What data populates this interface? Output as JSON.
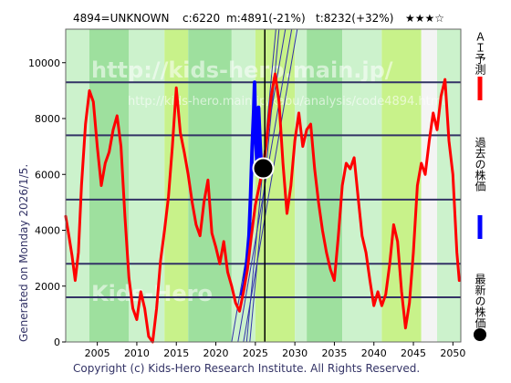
{
  "header": {
    "code_name": "4894=UNKNOWN",
    "current": "c:6220",
    "min_stat": "m:4891(-21%)",
    "target_stat": "t:8232(+32%)",
    "rating": "★★★☆"
  },
  "side_label": "Generated on Monday 2026/1/5.",
  "copyright": "Copyright (c) Kids-Hero Research Institute. All Rights Reserved.",
  "watermark": {
    "main": "http://kids-hero.main.jp/",
    "sub": "http://kids-hero.main.jp/kabu/analysis/code4894.html",
    "bottom": "Kids-Hero"
  },
  "legend": [
    {
      "label": "ＡＩ予測",
      "color": "#ff0000",
      "shape": "line"
    },
    {
      "label": "過去の株価",
      "color": "#0000ff",
      "shape": "line"
    },
    {
      "label": "最新の株価",
      "color": "#000000",
      "shape": "dot"
    }
  ],
  "colors": {
    "band_light": "#ccf2cc",
    "band_green": "#9ee09e",
    "band_yellow": "#c8f28a",
    "band_white": "#f4f4f4",
    "forecast": "#ff0000",
    "history": "#0000ff",
    "hline": "#333366",
    "diag": "#3333aa"
  },
  "chart_data": {
    "type": "line",
    "title": "",
    "xlabel": "",
    "ylabel": "",
    "xlim": [
      2001,
      2051
    ],
    "ylim": [
      0,
      11200
    ],
    "x_ticks": [
      2005,
      2010,
      2015,
      2020,
      2025,
      2030,
      2035,
      2040,
      2045,
      2050
    ],
    "y_ticks": [
      0,
      2000,
      4000,
      6000,
      8000,
      10000
    ],
    "grid": false,
    "legend_position": "right",
    "horizontal_levels": [
      9300,
      7400,
      5100,
      2800,
      1600
    ],
    "latest_price": {
      "x": 2026.0,
      "y": 6220
    },
    "vertical_marker_x": 2026.2,
    "bands": [
      {
        "from": 2001.0,
        "to": 2004.0,
        "kind": "light"
      },
      {
        "from": 2004.0,
        "to": 2009.0,
        "kind": "green"
      },
      {
        "from": 2009.0,
        "to": 2013.5,
        "kind": "light"
      },
      {
        "from": 2013.5,
        "to": 2016.5,
        "kind": "yellow"
      },
      {
        "from": 2016.5,
        "to": 2022.0,
        "kind": "green"
      },
      {
        "from": 2022.0,
        "to": 2025.0,
        "kind": "light"
      },
      {
        "from": 2025.0,
        "to": 2030.0,
        "kind": "yellow"
      },
      {
        "from": 2030.0,
        "to": 2031.5,
        "kind": "light"
      },
      {
        "from": 2031.5,
        "to": 2036.0,
        "kind": "green"
      },
      {
        "from": 2036.0,
        "to": 2041.0,
        "kind": "light"
      },
      {
        "from": 2041.0,
        "to": 2046.0,
        "kind": "yellow"
      },
      {
        "from": 2046.0,
        "to": 2048.0,
        "kind": "white"
      },
      {
        "from": 2048.0,
        "to": 2051.0,
        "kind": "light"
      }
    ],
    "trend_lines": [
      {
        "x1": 2022.0,
        "y1": 0,
        "x2": 2028.8,
        "y2": 11200
      },
      {
        "x1": 2022.8,
        "y1": 0,
        "x2": 2029.6,
        "y2": 11200
      },
      {
        "x1": 2023.5,
        "y1": 0,
        "x2": 2030.3,
        "y2": 11200
      },
      {
        "x1": 2023.9,
        "y1": 0,
        "x2": 2027.6,
        "y2": 11200
      },
      {
        "x1": 2024.3,
        "y1": 0,
        "x2": 2028.0,
        "y2": 11200
      }
    ],
    "series": [
      {
        "name": "過去の株価",
        "values": [
          [
            2023.3,
            1700
          ],
          [
            2023.6,
            2100
          ],
          [
            2023.9,
            2800
          ],
          [
            2024.2,
            3800
          ],
          [
            2024.4,
            5200
          ],
          [
            2024.6,
            7000
          ],
          [
            2024.8,
            8300
          ],
          [
            2024.9,
            9300
          ],
          [
            2025.0,
            7600
          ],
          [
            2025.2,
            6400
          ],
          [
            2025.4,
            8400
          ],
          [
            2025.6,
            7100
          ],
          [
            2025.8,
            6000
          ],
          [
            2026.0,
            6220
          ]
        ]
      },
      {
        "name": "ＡＩ予測",
        "values": [
          [
            2001.0,
            4500
          ],
          [
            2001.4,
            3800
          ],
          [
            2001.8,
            3100
          ],
          [
            2002.2,
            2200
          ],
          [
            2002.6,
            3200
          ],
          [
            2003.0,
            5600
          ],
          [
            2003.5,
            7800
          ],
          [
            2004.0,
            9000
          ],
          [
            2004.5,
            8600
          ],
          [
            2005.0,
            7000
          ],
          [
            2005.5,
            5600
          ],
          [
            2006.0,
            6400
          ],
          [
            2006.5,
            6800
          ],
          [
            2007.0,
            7600
          ],
          [
            2007.5,
            8100
          ],
          [
            2008.0,
            7000
          ],
          [
            2008.5,
            4500
          ],
          [
            2009.0,
            2300
          ],
          [
            2009.5,
            1200
          ],
          [
            2010.0,
            800
          ],
          [
            2010.5,
            1800
          ],
          [
            2011.0,
            1200
          ],
          [
            2011.5,
            200
          ],
          [
            2012.0,
            0
          ],
          [
            2012.5,
            1200
          ],
          [
            2013.0,
            2900
          ],
          [
            2013.5,
            4000
          ],
          [
            2014.0,
            5200
          ],
          [
            2014.5,
            7000
          ],
          [
            2015.0,
            9100
          ],
          [
            2015.5,
            7500
          ],
          [
            2016.0,
            6800
          ],
          [
            2016.5,
            6000
          ],
          [
            2017.0,
            5000
          ],
          [
            2017.5,
            4200
          ],
          [
            2018.0,
            3800
          ],
          [
            2018.5,
            5000
          ],
          [
            2019.0,
            5800
          ],
          [
            2019.5,
            3900
          ],
          [
            2020.0,
            3400
          ],
          [
            2020.5,
            2800
          ],
          [
            2021.0,
            3600
          ],
          [
            2021.5,
            2500
          ],
          [
            2022.0,
            2000
          ],
          [
            2022.5,
            1400
          ],
          [
            2023.0,
            1100
          ],
          [
            2023.5,
            1800
          ],
          [
            2024.0,
            2600
          ],
          [
            2024.5,
            3800
          ],
          [
            2025.0,
            4900
          ],
          [
            2025.5,
            5600
          ],
          [
            2026.0,
            6220
          ],
          [
            2026.5,
            7400
          ],
          [
            2027.0,
            8800
          ],
          [
            2027.5,
            9600
          ],
          [
            2028.0,
            8600
          ],
          [
            2028.5,
            6400
          ],
          [
            2029.0,
            4600
          ],
          [
            2029.5,
            5600
          ],
          [
            2030.0,
            7200
          ],
          [
            2030.5,
            8200
          ],
          [
            2031.0,
            7000
          ],
          [
            2031.5,
            7600
          ],
          [
            2032.0,
            7800
          ],
          [
            2032.5,
            6200
          ],
          [
            2033.0,
            5000
          ],
          [
            2033.5,
            4000
          ],
          [
            2034.0,
            3200
          ],
          [
            2034.5,
            2600
          ],
          [
            2035.0,
            2200
          ],
          [
            2035.5,
            3800
          ],
          [
            2036.0,
            5600
          ],
          [
            2036.5,
            6400
          ],
          [
            2037.0,
            6200
          ],
          [
            2037.5,
            6600
          ],
          [
            2038.0,
            5200
          ],
          [
            2038.5,
            3800
          ],
          [
            2039.0,
            3200
          ],
          [
            2039.5,
            2200
          ],
          [
            2040.0,
            1300
          ],
          [
            2040.5,
            1800
          ],
          [
            2041.0,
            1300
          ],
          [
            2041.5,
            1700
          ],
          [
            2042.0,
            2800
          ],
          [
            2042.5,
            4200
          ],
          [
            2043.0,
            3600
          ],
          [
            2043.5,
            1800
          ],
          [
            2044.0,
            500
          ],
          [
            2044.5,
            1400
          ],
          [
            2045.0,
            3200
          ],
          [
            2045.5,
            5600
          ],
          [
            2046.0,
            6400
          ],
          [
            2046.5,
            6000
          ],
          [
            2047.0,
            7200
          ],
          [
            2047.5,
            8200
          ],
          [
            2048.0,
            7600
          ],
          [
            2048.5,
            8800
          ],
          [
            2049.0,
            9400
          ],
          [
            2049.5,
            7200
          ],
          [
            2050.0,
            6000
          ],
          [
            2050.5,
            3200
          ],
          [
            2050.8,
            2200
          ]
        ]
      }
    ]
  }
}
